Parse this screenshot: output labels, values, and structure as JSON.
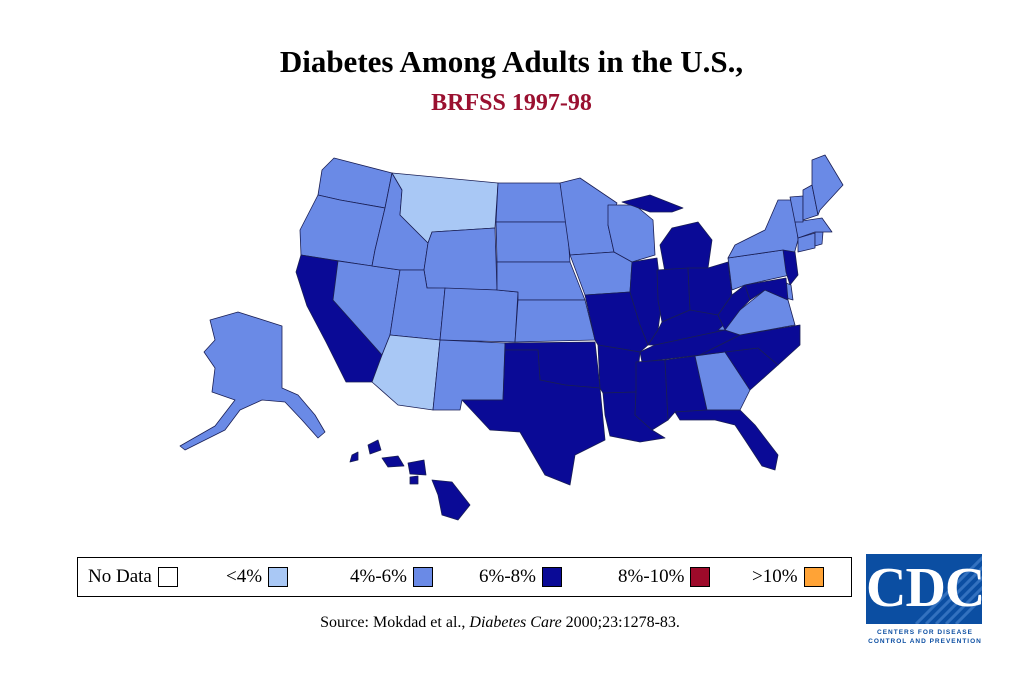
{
  "title": "Diabetes Among Adults in the U.S.,",
  "subtitle": "BRFSS 1997-98",
  "legend": [
    {
      "label": "No Data",
      "color": "#ffffff"
    },
    {
      "label": "<4%",
      "color": "#a9c8f5"
    },
    {
      "label": "4%-6%",
      "color": "#6a8ae6"
    },
    {
      "label": "6%-8%",
      "color": "#0a0a96"
    },
    {
      "label": "8%-10%",
      "color": "#9e0a2a"
    },
    {
      "label": ">10%",
      "color": "#ffa336"
    }
  ],
  "source": {
    "prefix": "Source: Mokdad et al., ",
    "journal": "Diabetes Care",
    "suffix": " 2000;23:1278-83."
  },
  "logo": {
    "text": "CDC",
    "line1": "CENTERS FOR DISEASE",
    "line2": "CONTROL AND PREVENTION"
  },
  "states": {
    "WA": "4%-6%",
    "OR": "4%-6%",
    "CA": "6%-8%",
    "NV": "4%-6%",
    "ID": "4%-6%",
    "MT": "<4%",
    "WY": "4%-6%",
    "UT": "4%-6%",
    "AZ": "<4%",
    "CO": "4%-6%",
    "NM": "4%-6%",
    "ND": "4%-6%",
    "SD": "4%-6%",
    "NE": "4%-6%",
    "KS": "4%-6%",
    "OK": "6%-8%",
    "TX": "6%-8%",
    "MN": "4%-6%",
    "IA": "4%-6%",
    "MO": "6%-8%",
    "AR": "6%-8%",
    "LA": "6%-8%",
    "WI": "4%-6%",
    "IL": "6%-8%",
    "MI": "6%-8%",
    "IN": "6%-8%",
    "OH": "6%-8%",
    "KY": "6%-8%",
    "TN": "6%-8%",
    "MS": "6%-8%",
    "AL": "6%-8%",
    "GA": "4%-6%",
    "FL": "6%-8%",
    "SC": "6%-8%",
    "NC": "6%-8%",
    "VA": "4%-6%",
    "WV": "6%-8%",
    "PA": "4%-6%",
    "NY": "4%-6%",
    "NJ": "6%-8%",
    "DE": "4%-6%",
    "MD": "6%-8%",
    "CT": "4%-6%",
    "RI": "4%-6%",
    "MA": "4%-6%",
    "VT": "4%-6%",
    "NH": "4%-6%",
    "ME": "4%-6%",
    "AK": "4%-6%",
    "HI": "6%-8%",
    "DC": "6%-8%"
  }
}
